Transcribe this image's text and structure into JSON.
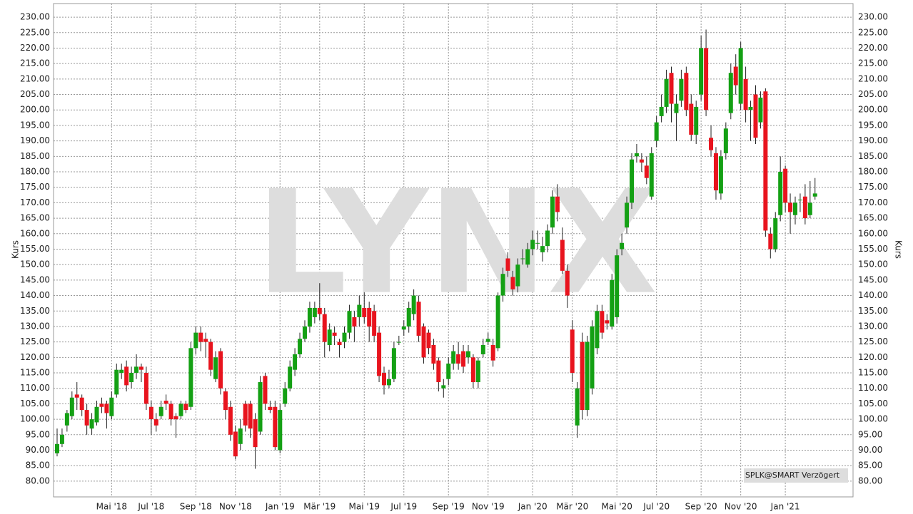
{
  "chart_data": {
    "type": "candlestick",
    "watermark": "LYNX",
    "ylabel": "Kurs",
    "source_label": "SPLK@SMART Verzögert",
    "up_color": "#14a014",
    "down_color": "#e8141e",
    "grid": true,
    "ylim": [
      74.9,
      234.4
    ],
    "yticks": [
      {
        "value": 80,
        "label": "80.00"
      },
      {
        "value": 85,
        "label": "85.00"
      },
      {
        "value": 90,
        "label": "90.00"
      },
      {
        "value": 95,
        "label": "95.00"
      },
      {
        "value": 100,
        "label": "100.00"
      },
      {
        "value": 105,
        "label": "105.00"
      },
      {
        "value": 110,
        "label": "110.00"
      },
      {
        "value": 115,
        "label": "115.00"
      },
      {
        "value": 120,
        "label": "120.00"
      },
      {
        "value": 125,
        "label": "125.00"
      },
      {
        "value": 130,
        "label": "130.00"
      },
      {
        "value": 135,
        "label": "135.00"
      },
      {
        "value": 140,
        "label": "140.00"
      },
      {
        "value": 145,
        "label": "145.00"
      },
      {
        "value": 150,
        "label": "150.00"
      },
      {
        "value": 155,
        "label": "155.00"
      },
      {
        "value": 160,
        "label": "160.00"
      },
      {
        "value": 165,
        "label": "165.00"
      },
      {
        "value": 170,
        "label": "170.00"
      },
      {
        "value": 175,
        "label": "175.00"
      },
      {
        "value": 180,
        "label": "180.00"
      },
      {
        "value": 185,
        "label": "185.00"
      },
      {
        "value": 190,
        "label": "190.00"
      },
      {
        "value": 195,
        "label": "195.00"
      },
      {
        "value": 200,
        "label": "200.00"
      },
      {
        "value": 205,
        "label": "205.00"
      },
      {
        "value": 210,
        "label": "210.00"
      },
      {
        "value": 215,
        "label": "215.00"
      },
      {
        "value": 220,
        "label": "220.00"
      },
      {
        "value": 225,
        "label": "225.00"
      },
      {
        "value": 230,
        "label": "230.00"
      }
    ],
    "categories": [
      null,
      null,
      null,
      null,
      null,
      null,
      null,
      null,
      null,
      null,
      null,
      "Mai '18",
      null,
      null,
      null,
      null,
      null,
      null,
      null,
      "Jul '18",
      null,
      null,
      null,
      null,
      null,
      null,
      null,
      null,
      "Sep '18",
      null,
      null,
      null,
      null,
      null,
      null,
      null,
      "Nov '18",
      null,
      null,
      null,
      null,
      null,
      null,
      null,
      null,
      "Jan '19",
      null,
      null,
      null,
      null,
      null,
      null,
      null,
      "Mär '19",
      null,
      null,
      null,
      null,
      null,
      null,
      null,
      null,
      "Mai '19",
      null,
      null,
      null,
      null,
      null,
      null,
      null,
      "Jul '19",
      null,
      null,
      null,
      null,
      null,
      null,
      null,
      null,
      "Sep '19",
      null,
      null,
      null,
      null,
      null,
      null,
      null,
      "Nov '19",
      null,
      null,
      null,
      null,
      null,
      null,
      null,
      null,
      "Jan '20",
      null,
      null,
      null,
      null,
      null,
      null,
      null,
      "Mär '20",
      null,
      null,
      null,
      null,
      null,
      null,
      null,
      null,
      "Mai '20",
      null,
      null,
      null,
      null,
      null,
      null,
      null,
      "Jul '20",
      null,
      null,
      null,
      null,
      null,
      null,
      null,
      null,
      "Sep '20",
      null,
      null,
      null,
      null,
      null,
      null,
      null,
      "Nov '20",
      null,
      null,
      null,
      null,
      null,
      null,
      null,
      null,
      "Jan '21",
      null,
      null,
      null,
      null,
      null,
      null
    ],
    "open": [
      89,
      92,
      98,
      101,
      108,
      107,
      103,
      97,
      99,
      105,
      105,
      101,
      108,
      115,
      117,
      112,
      115,
      117,
      115,
      104,
      100,
      101,
      106,
      105,
      101,
      101,
      105,
      104,
      123,
      128,
      126,
      125,
      113,
      122,
      109,
      104,
      96,
      92,
      105,
      105,
      100,
      96,
      114,
      104,
      104,
      90,
      105,
      110,
      116,
      121,
      126,
      130,
      133,
      136,
      134,
      124,
      128,
      125,
      125,
      128,
      133,
      133,
      136,
      136,
      135,
      128,
      115,
      111,
      113,
      125,
      129,
      130,
      134,
      138,
      130,
      128,
      124,
      119,
      110,
      113,
      118,
      121,
      122,
      120,
      120,
      112,
      121,
      125,
      124,
      123,
      140,
      152,
      146,
      143,
      152,
      150,
      155,
      157,
      154,
      156,
      162,
      172,
      158,
      148,
      129,
      98,
      125,
      103,
      110,
      123,
      135,
      132,
      130,
      133,
      155,
      162,
      170,
      185,
      184,
      182,
      172,
      190,
      198,
      201,
      212,
      199,
      203,
      212,
      202,
      192,
      205,
      220,
      191,
      186,
      173,
      186,
      199,
      214,
      202,
      210,
      200,
      205,
      196,
      206,
      160,
      155,
      166,
      181,
      170,
      166,
      171,
      172,
      166,
      172
    ],
    "high": [
      97,
      97,
      103,
      109,
      112,
      108,
      105,
      102,
      106,
      107,
      106,
      109,
      118,
      118,
      119,
      117,
      121,
      118,
      117,
      106,
      102,
      106,
      108,
      106,
      102,
      106,
      106,
      125,
      130,
      130,
      128,
      126,
      122,
      123,
      110,
      106,
      98,
      100,
      106,
      106,
      102,
      114,
      115,
      106,
      106,
      105,
      112,
      119,
      123,
      128,
      132,
      138,
      138,
      144,
      136,
      131,
      130,
      126,
      130,
      137,
      135,
      140,
      141,
      138,
      137,
      130,
      117,
      116,
      125,
      127,
      132,
      138,
      142,
      140,
      131,
      129,
      126,
      120,
      113,
      120,
      124,
      125,
      124,
      124,
      121,
      120,
      126,
      128,
      126,
      141,
      149,
      154,
      148,
      152,
      155,
      157,
      161,
      161,
      159,
      163,
      174,
      176,
      162,
      150,
      132,
      112,
      128,
      127,
      132,
      137,
      137,
      134,
      147,
      155,
      160,
      172,
      186,
      189,
      186,
      185,
      188,
      198,
      205,
      213,
      214,
      205,
      213,
      214,
      205,
      203,
      224,
      226,
      195,
      188,
      187,
      196,
      215,
      218,
      222,
      214,
      203,
      208,
      206,
      207,
      162,
      167,
      185,
      182,
      173,
      172,
      173,
      176,
      177,
      178
    ],
    "low": [
      88,
      91,
      96,
      100,
      103,
      101,
      95,
      95,
      98,
      102,
      97,
      100,
      107,
      113,
      109,
      110,
      113,
      112,
      103,
      95,
      96,
      100,
      103,
      98,
      94,
      100,
      102,
      103,
      121,
      122,
      120,
      114,
      112,
      108,
      100,
      93,
      87,
      90,
      96,
      94,
      84,
      95,
      103,
      102,
      90,
      89,
      104,
      109,
      114,
      120,
      125,
      128,
      131,
      132,
      120,
      122,
      124,
      120,
      123,
      126,
      125,
      130,
      131,
      125,
      125,
      112,
      108,
      110,
      112,
      124,
      127,
      128,
      132,
      125,
      118,
      121,
      116,
      109,
      107,
      111,
      116,
      116,
      115,
      118,
      110,
      110,
      120,
      124,
      117,
      122,
      138,
      146,
      140,
      141,
      150,
      149,
      153,
      155,
      151,
      154,
      160,
      164,
      147,
      136,
      112,
      94,
      100,
      101,
      108,
      121,
      126,
      129,
      129,
      131,
      153,
      160,
      168,
      183,
      180,
      176,
      171,
      188,
      196,
      199,
      196,
      190,
      201,
      198,
      190,
      189,
      203,
      198,
      185,
      171,
      171,
      184,
      197,
      205,
      200,
      196,
      190,
      189,
      194,
      159,
      152,
      154,
      164,
      167,
      160,
      163,
      167,
      163,
      165,
      171
    ],
    "close": [
      92,
      95,
      102,
      107,
      107,
      103,
      98,
      100,
      104,
      104,
      102,
      107,
      116,
      116,
      111,
      115,
      117,
      116,
      105,
      100,
      98,
      104,
      105,
      100,
      100,
      105,
      103,
      123,
      128,
      125,
      125,
      116,
      120,
      110,
      103,
      95,
      88,
      97,
      98,
      97,
      91,
      112,
      105,
      103,
      91,
      103,
      110,
      117,
      121,
      126,
      130,
      136,
      136,
      134,
      125,
      129,
      127,
      124,
      128,
      135,
      130,
      137,
      133,
      130,
      127,
      114,
      111,
      113,
      123,
      125,
      130,
      136,
      140,
      127,
      120,
      123,
      118,
      112,
      111,
      118,
      122,
      118,
      117,
      122,
      112,
      119,
      124,
      126,
      119,
      140,
      147,
      148,
      142,
      150,
      152,
      155,
      158,
      157,
      156,
      161,
      172,
      167,
      148,
      140,
      115,
      110,
      103,
      125,
      130,
      135,
      128,
      131,
      145,
      153,
      157,
      170,
      184,
      186,
      183,
      178,
      186,
      196,
      201,
      210,
      202,
      202,
      210,
      200,
      192,
      201,
      220,
      200,
      187,
      174,
      185,
      194,
      212,
      208,
      220,
      200,
      201,
      191,
      204,
      161,
      155,
      165,
      180,
      170,
      167,
      170,
      171,
      165,
      170,
      173
    ]
  }
}
